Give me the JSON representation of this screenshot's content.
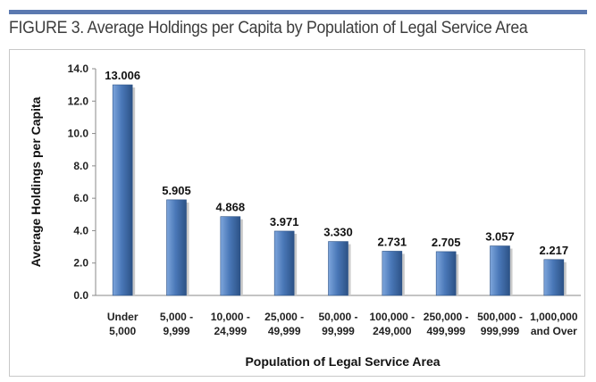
{
  "figure_title": "FIGURE 3. Average Holdings per Capita by Population of Legal Service Area",
  "colors": {
    "bar_light": "#7ea6dc",
    "bar_main": "#4a78b8",
    "bar_dark": "#2c5286",
    "rule": "#5b79b0"
  },
  "chart_data": {
    "type": "bar",
    "title": "",
    "xlabel": "Population of Legal Service Area",
    "ylabel": "Average Holdings per Capita",
    "ylim": [
      0,
      14
    ],
    "yticks": [
      "0.0",
      "2.0",
      "4.0",
      "6.0",
      "8.0",
      "10.0",
      "12.0",
      "14.0"
    ],
    "categories": [
      [
        "Under",
        "5,000"
      ],
      [
        "5,000 -",
        "9,999"
      ],
      [
        "10,000 -",
        "24,999"
      ],
      [
        "25,000 -",
        "49,999"
      ],
      [
        "50,000 -",
        "99,999"
      ],
      [
        "100,000 -",
        "249,000"
      ],
      [
        "250,000 -",
        "499,999"
      ],
      [
        "500,000 -",
        "999,999"
      ],
      [
        "1,000,000",
        "and Over"
      ]
    ],
    "values": [
      13.006,
      5.905,
      4.868,
      3.971,
      3.33,
      2.731,
      2.705,
      3.057,
      2.217
    ],
    "value_labels": [
      "13.006",
      "5.905",
      "4.868",
      "3.971",
      "3.330",
      "2.731",
      "2.705",
      "3.057",
      "2.217"
    ],
    "grid": false,
    "legend": "none"
  }
}
